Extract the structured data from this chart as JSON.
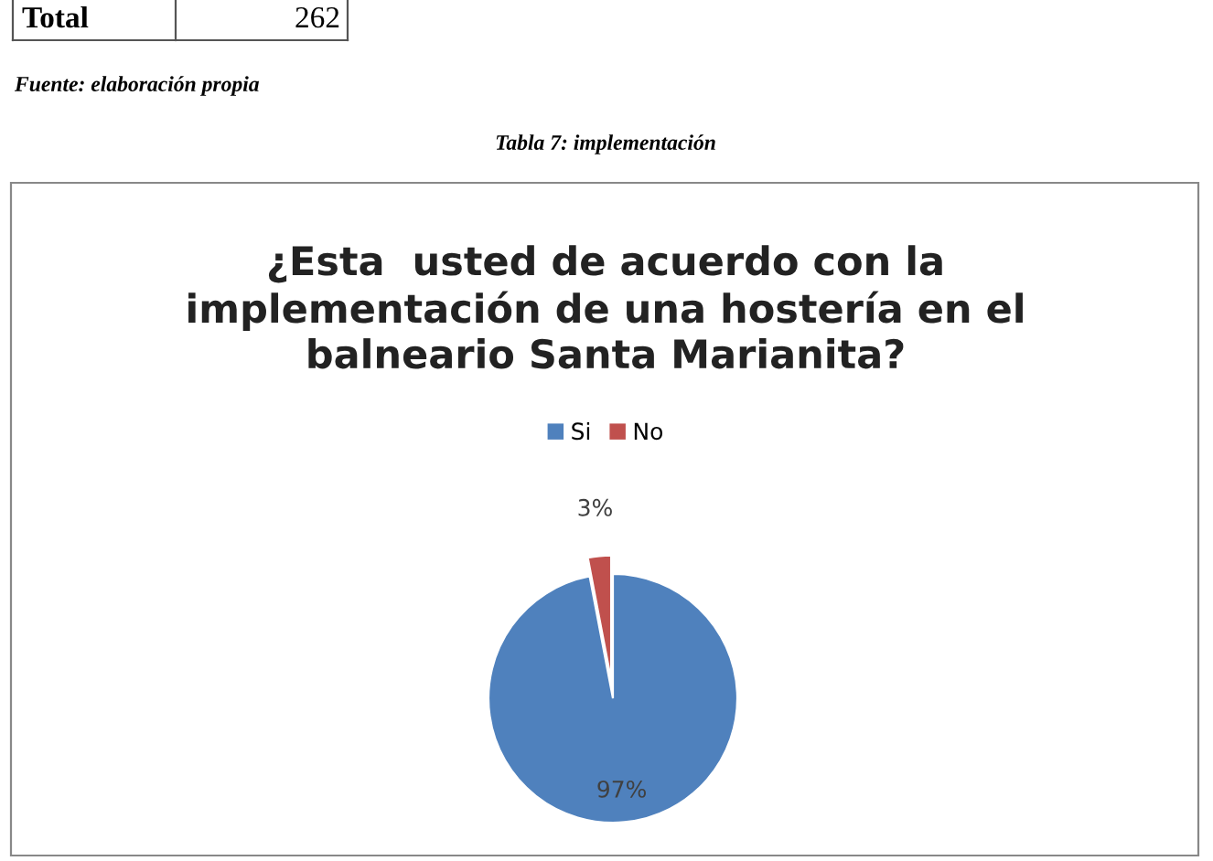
{
  "chart_data": {
    "type": "pie",
    "title": "¿Esta  usted de acuerdo con la\nimplementación de una hostería en el\nbalneario Santa Marianita?",
    "categories": [
      "Si",
      "No"
    ],
    "values": [
      97,
      3
    ],
    "colors": [
      "#4f81bd",
      "#c0504d"
    ],
    "value_labels": [
      "97%",
      "3%"
    ],
    "legend": "top",
    "annotations": [
      "Total",
      "262",
      "Fuente: elaboración propia",
      "Tabla 7: implementación"
    ]
  }
}
